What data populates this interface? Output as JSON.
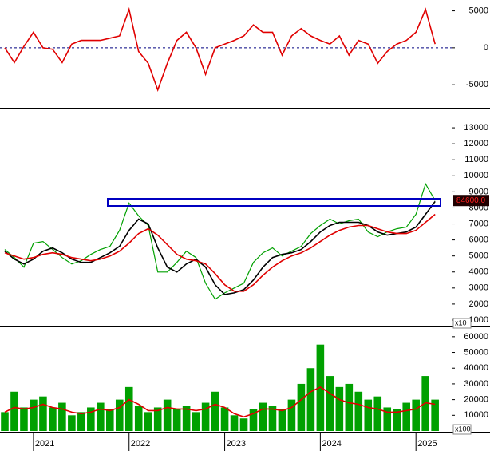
{
  "chart_data": [
    {
      "type": "line",
      "x": [
        2020.7,
        2020.8,
        2020.9,
        2021.0,
        2021.1,
        2021.2,
        2021.3,
        2021.4,
        2021.5,
        2021.6,
        2021.7,
        2021.8,
        2021.9,
        2022.0,
        2022.1,
        2022.2,
        2022.3,
        2022.4,
        2022.5,
        2022.6,
        2022.7,
        2022.8,
        2022.9,
        2023.0,
        2023.1,
        2023.2,
        2023.3,
        2023.4,
        2023.5,
        2023.6,
        2023.7,
        2023.8,
        2023.9,
        2024.0,
        2024.1,
        2024.2,
        2024.3,
        2024.4,
        2024.5,
        2024.6,
        2024.7,
        2024.8,
        2024.9,
        2025.0,
        2025.1,
        2025.2
      ],
      "xlim": [
        2020.65,
        2025.374
      ],
      "ylim": [
        -7900,
        6250
      ],
      "yticks": [
        5000,
        0,
        -5000
      ],
      "hline": 0,
      "series": [
        {
          "color": "#e00000",
          "values": [
            0,
            -2000,
            200,
            2100,
            0,
            -200,
            -2000,
            500,
            1000,
            1000,
            1000,
            1300,
            1600,
            5200,
            -500,
            -2100,
            -5700,
            -2100,
            1000,
            2100,
            0,
            -3600,
            0,
            500,
            1000,
            1600,
            3100,
            2100,
            2100,
            -1000,
            1600,
            2600,
            1600,
            1000,
            500,
            1600,
            -1000,
            1000,
            500,
            -2100,
            -500,
            500,
            1000,
            2100,
            5200,
            500
          ]
        }
      ]
    },
    {
      "type": "line",
      "x": [
        2020.7,
        2020.8,
        2020.9,
        2021.0,
        2021.1,
        2021.2,
        2021.3,
        2021.4,
        2021.5,
        2021.6,
        2021.7,
        2021.8,
        2021.9,
        2022.0,
        2022.1,
        2022.2,
        2022.3,
        2022.4,
        2022.5,
        2022.6,
        2022.7,
        2022.8,
        2022.9,
        2023.0,
        2023.1,
        2023.2,
        2023.3,
        2023.4,
        2023.5,
        2023.6,
        2023.7,
        2023.8,
        2023.9,
        2024.0,
        2024.1,
        2024.2,
        2024.3,
        2024.4,
        2024.5,
        2024.6,
        2024.7,
        2024.8,
        2024.9,
        2025.0,
        2025.1,
        2025.2
      ],
      "xlim": [
        2020.65,
        2025.374
      ],
      "ylim": [
        700,
        14050
      ],
      "yticks": [
        1000,
        2000,
        3000,
        4000,
        5000,
        6000,
        7000,
        8000,
        9000,
        10000,
        11000,
        12000,
        13000
      ],
      "y_unit_label": "x10",
      "series": [
        {
          "color": "#00a000",
          "values": [
            5400,
            4900,
            4300,
            5800,
            5900,
            5400,
            4900,
            4500,
            4700,
            5100,
            5400,
            5600,
            6600,
            8300,
            7500,
            6900,
            4000,
            4000,
            4600,
            5300,
            4900,
            3300,
            2300,
            2700,
            3000,
            3300,
            4600,
            5200,
            5500,
            5000,
            5300,
            5600,
            6400,
            6900,
            7300,
            7000,
            7200,
            7300,
            6500,
            6200,
            6500,
            6700,
            6800,
            7600,
            9500,
            8460
          ],
          "value_labels": [
            null,
            null,
            null,
            null,
            null,
            null,
            null,
            null,
            null,
            null,
            null,
            null,
            null,
            null,
            null,
            null,
            null,
            null,
            null,
            null,
            null,
            null,
            null,
            null,
            null,
            null,
            null,
            null,
            null,
            null,
            null,
            null,
            null,
            null,
            null,
            null,
            null,
            null,
            null,
            null,
            null,
            null,
            null,
            null,
            null,
            "84600.0"
          ]
        },
        {
          "color": "#000000",
          "values": [
            5300,
            4800,
            4500,
            4800,
            5300,
            5500,
            5200,
            4800,
            4600,
            4600,
            4900,
            5200,
            5600,
            6600,
            7300,
            7000,
            5500,
            4300,
            4000,
            4500,
            4800,
            4300,
            3200,
            2600,
            2700,
            2900,
            3500,
            4300,
            4900,
            5100,
            5200,
            5400,
            5900,
            6500,
            6900,
            7100,
            7100,
            7100,
            6900,
            6500,
            6300,
            6400,
            6500,
            6800,
            7600,
            8400
          ]
        },
        {
          "color": "#e00000",
          "values": [
            5200,
            5000,
            4800,
            4900,
            5100,
            5200,
            5100,
            4900,
            4800,
            4700,
            4800,
            5000,
            5300,
            5800,
            6400,
            6700,
            6300,
            5700,
            5100,
            4800,
            4700,
            4500,
            3900,
            3200,
            2800,
            2800,
            3200,
            3800,
            4300,
            4700,
            5000,
            5200,
            5500,
            5900,
            6300,
            6600,
            6800,
            6900,
            6900,
            6700,
            6500,
            6400,
            6400,
            6600,
            7100,
            7600
          ]
        }
      ]
    },
    {
      "type": "bar",
      "x": [
        2020.7,
        2020.8,
        2020.9,
        2021.0,
        2021.1,
        2021.2,
        2021.3,
        2021.4,
        2021.5,
        2021.6,
        2021.7,
        2021.8,
        2021.9,
        2022.0,
        2022.1,
        2022.2,
        2022.3,
        2022.4,
        2022.5,
        2022.6,
        2022.7,
        2022.8,
        2022.9,
        2023.0,
        2023.1,
        2023.2,
        2023.3,
        2023.4,
        2023.5,
        2023.6,
        2023.7,
        2023.8,
        2023.9,
        2024.0,
        2024.1,
        2024.2,
        2024.3,
        2024.4,
        2024.5,
        2024.6,
        2024.7,
        2024.8,
        2024.9,
        2025.0,
        2025.1,
        2025.2
      ],
      "xlim": [
        2020.65,
        2025.374
      ],
      "xticks": [
        2021,
        2022,
        2023,
        2024,
        2025
      ],
      "ylim": [
        0,
        65000
      ],
      "yticks": [
        10000,
        20000,
        30000,
        40000,
        50000,
        60000
      ],
      "y_unit_label": "x100",
      "series": [
        {
          "type": "bar",
          "color": "#00a000",
          "values": [
            12000,
            25000,
            15000,
            20000,
            22000,
            15000,
            18000,
            10000,
            12000,
            15000,
            18000,
            14000,
            20000,
            28000,
            16000,
            12000,
            15000,
            20000,
            14000,
            16000,
            12000,
            18000,
            25000,
            15000,
            10000,
            8000,
            14000,
            18000,
            16000,
            14000,
            20000,
            30000,
            40000,
            55000,
            35000,
            28000,
            30000,
            25000,
            20000,
            22000,
            15000,
            14000,
            18000,
            20000,
            35000,
            20000
          ]
        },
        {
          "type": "line",
          "color": "#e00000",
          "values": [
            12000,
            15000,
            14000,
            15000,
            17000,
            15000,
            14000,
            12000,
            11000,
            12000,
            14000,
            13000,
            15000,
            20000,
            17000,
            13000,
            13000,
            15000,
            14000,
            14000,
            13000,
            14000,
            17000,
            15000,
            11000,
            9000,
            11000,
            14000,
            14000,
            13000,
            15000,
            20000,
            25000,
            28000,
            24000,
            20000,
            18000,
            17000,
            15000,
            14000,
            12000,
            12000,
            13000,
            14000,
            18000,
            17000
          ]
        }
      ]
    }
  ]
}
